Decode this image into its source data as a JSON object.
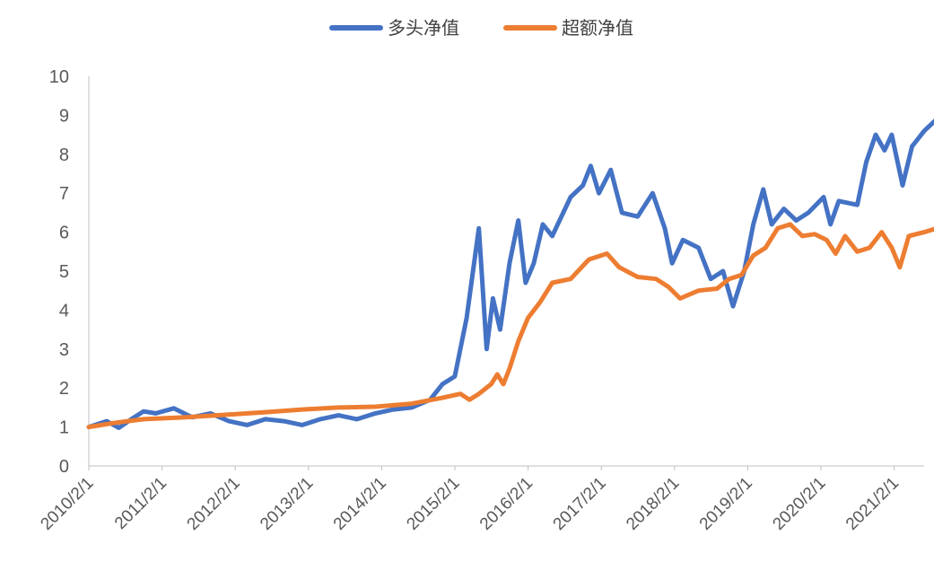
{
  "chart_data": {
    "type": "line",
    "title": "",
    "xlabel": "",
    "ylabel": "",
    "ylim": [
      0,
      10
    ],
    "y_ticks": [
      "0",
      "1",
      "2",
      "3",
      "4",
      "5",
      "6",
      "7",
      "8",
      "9",
      "10"
    ],
    "x_ticks": [
      "2010/2/1",
      "2011/2/1",
      "2012/2/1",
      "2013/2/1",
      "2014/2/1",
      "2015/2/1",
      "2016/2/1",
      "2017/2/1",
      "2018/2/1",
      "2019/2/1",
      "2020/2/1",
      "2021/2/1"
    ],
    "grid": false,
    "legend_position": "top-center",
    "series": [
      {
        "name": "多头净值",
        "color": "#4472C4",
        "points": [
          [
            "2010-02-01",
            1.0
          ],
          [
            "2010-05-01",
            1.15
          ],
          [
            "2010-07-01",
            0.98
          ],
          [
            "2010-09-01",
            1.2
          ],
          [
            "2010-11-01",
            1.4
          ],
          [
            "2011-01-01",
            1.35
          ],
          [
            "2011-04-01",
            1.48
          ],
          [
            "2011-07-01",
            1.25
          ],
          [
            "2011-10-01",
            1.35
          ],
          [
            "2012-01-01",
            1.15
          ],
          [
            "2012-04-01",
            1.05
          ],
          [
            "2012-07-01",
            1.2
          ],
          [
            "2012-10-01",
            1.15
          ],
          [
            "2013-01-01",
            1.05
          ],
          [
            "2013-04-01",
            1.2
          ],
          [
            "2013-07-01",
            1.3
          ],
          [
            "2013-10-01",
            1.2
          ],
          [
            "2014-01-01",
            1.35
          ],
          [
            "2014-04-01",
            1.45
          ],
          [
            "2014-07-01",
            1.5
          ],
          [
            "2014-10-01",
            1.7
          ],
          [
            "2014-12-01",
            2.1
          ],
          [
            "2015-02-01",
            2.3
          ],
          [
            "2015-04-01",
            3.8
          ],
          [
            "2015-06-01",
            6.1
          ],
          [
            "2015-07-10",
            3.0
          ],
          [
            "2015-08-10",
            4.3
          ],
          [
            "2015-09-15",
            3.5
          ],
          [
            "2015-11-01",
            5.2
          ],
          [
            "2015-12-15",
            6.3
          ],
          [
            "2016-01-20",
            4.7
          ],
          [
            "2016-03-01",
            5.2
          ],
          [
            "2016-04-15",
            6.2
          ],
          [
            "2016-06-01",
            5.9
          ],
          [
            "2016-09-01",
            6.9
          ],
          [
            "2016-11-01",
            7.2
          ],
          [
            "2016-12-10",
            7.7
          ],
          [
            "2017-01-20",
            7.0
          ],
          [
            "2017-03-20",
            7.6
          ],
          [
            "2017-05-15",
            6.5
          ],
          [
            "2017-08-01",
            6.4
          ],
          [
            "2017-10-15",
            7.0
          ],
          [
            "2017-12-15",
            6.1
          ],
          [
            "2018-01-20",
            5.2
          ],
          [
            "2018-03-15",
            5.8
          ],
          [
            "2018-06-01",
            5.6
          ],
          [
            "2018-08-01",
            4.8
          ],
          [
            "2018-10-01",
            5.0
          ],
          [
            "2018-11-20",
            4.1
          ],
          [
            "2019-01-15",
            5.0
          ],
          [
            "2019-03-01",
            6.2
          ],
          [
            "2019-04-20",
            7.1
          ],
          [
            "2019-06-01",
            6.2
          ],
          [
            "2019-08-01",
            6.6
          ],
          [
            "2019-10-01",
            6.3
          ],
          [
            "2019-12-01",
            6.5
          ],
          [
            "2020-02-15",
            6.9
          ],
          [
            "2020-03-20",
            6.2
          ],
          [
            "2020-05-01",
            6.8
          ],
          [
            "2020-08-01",
            6.7
          ],
          [
            "2020-09-15",
            7.8
          ],
          [
            "2020-11-01",
            8.5
          ],
          [
            "2020-12-15",
            8.1
          ],
          [
            "2021-01-20",
            8.5
          ],
          [
            "2021-03-15",
            7.2
          ],
          [
            "2021-05-01",
            8.2
          ],
          [
            "2021-07-01",
            8.6
          ],
          [
            "2021-09-01",
            8.9
          ]
        ]
      },
      {
        "name": "超额净值",
        "color": "#ED7D31",
        "points": [
          [
            "2010-02-01",
            1.0
          ],
          [
            "2010-06-01",
            1.1
          ],
          [
            "2010-11-01",
            1.2
          ],
          [
            "2011-06-01",
            1.25
          ],
          [
            "2012-01-01",
            1.32
          ],
          [
            "2012-07-01",
            1.38
          ],
          [
            "2013-01-01",
            1.45
          ],
          [
            "2013-07-01",
            1.5
          ],
          [
            "2014-01-01",
            1.52
          ],
          [
            "2014-07-01",
            1.6
          ],
          [
            "2014-12-01",
            1.75
          ],
          [
            "2015-03-01",
            1.85
          ],
          [
            "2015-04-15",
            1.7
          ],
          [
            "2015-06-01",
            1.85
          ],
          [
            "2015-08-01",
            2.1
          ],
          [
            "2015-09-01",
            2.35
          ],
          [
            "2015-10-01",
            2.1
          ],
          [
            "2015-11-01",
            2.5
          ],
          [
            "2015-12-15",
            3.2
          ],
          [
            "2016-02-01",
            3.8
          ],
          [
            "2016-04-01",
            4.2
          ],
          [
            "2016-06-01",
            4.7
          ],
          [
            "2016-09-01",
            4.8
          ],
          [
            "2016-12-01",
            5.3
          ],
          [
            "2017-03-01",
            5.45
          ],
          [
            "2017-05-01",
            5.1
          ],
          [
            "2017-08-01",
            4.85
          ],
          [
            "2017-11-01",
            4.8
          ],
          [
            "2018-01-01",
            4.6
          ],
          [
            "2018-03-01",
            4.3
          ],
          [
            "2018-06-01",
            4.5
          ],
          [
            "2018-09-01",
            4.55
          ],
          [
            "2018-11-01",
            4.8
          ],
          [
            "2019-01-01",
            4.9
          ],
          [
            "2019-03-01",
            5.4
          ],
          [
            "2019-05-01",
            5.6
          ],
          [
            "2019-07-01",
            6.1
          ],
          [
            "2019-09-01",
            6.2
          ],
          [
            "2019-11-01",
            5.9
          ],
          [
            "2020-01-01",
            5.95
          ],
          [
            "2020-03-01",
            5.8
          ],
          [
            "2020-04-15",
            5.45
          ],
          [
            "2020-06-01",
            5.9
          ],
          [
            "2020-08-01",
            5.5
          ],
          [
            "2020-10-01",
            5.6
          ],
          [
            "2020-12-01",
            6.0
          ],
          [
            "2021-01-20",
            5.6
          ],
          [
            "2021-03-01",
            5.1
          ],
          [
            "2021-04-15",
            5.9
          ],
          [
            "2021-07-01",
            6.0
          ],
          [
            "2021-09-01",
            6.1
          ]
        ]
      }
    ]
  }
}
